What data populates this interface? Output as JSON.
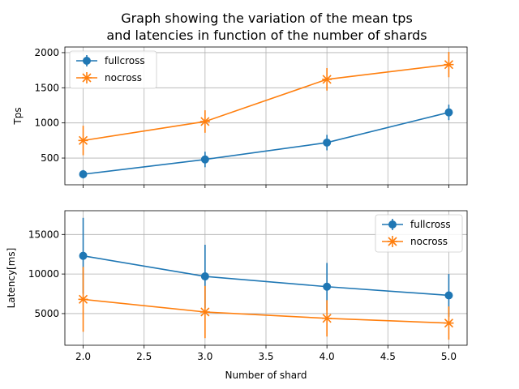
{
  "chart_data": {
    "title_lines": [
      "Graph showing the variation of the mean tps",
      "and latencies in function of the number of shards"
    ],
    "xlabel": "Number of shard",
    "x": [
      2,
      3,
      4,
      5
    ],
    "xlim": [
      1.85,
      5.15
    ],
    "xticks": [
      2.0,
      2.5,
      3.0,
      3.5,
      4.0,
      4.5,
      5.0
    ],
    "xtick_labels": [
      "2.0",
      "2.5",
      "3.0",
      "3.5",
      "4.0",
      "4.5",
      "5.0"
    ],
    "grid": true,
    "colors": {
      "fullcross": "#1f77b4",
      "nocross": "#ff7f0e"
    },
    "panels": [
      {
        "type": "line",
        "ylabel": "Tps",
        "ylim": [
          120,
          2080
        ],
        "yticks": [
          500,
          1000,
          1500,
          2000
        ],
        "ytick_labels": [
          "500",
          "1000",
          "1500",
          "2000"
        ],
        "legend_position": "top-left",
        "show_xtick_labels": false,
        "series": [
          {
            "name": "fullcross",
            "marker": "circle",
            "values": [
              270,
              480,
              720,
              1150
            ],
            "errors": [
              60,
              110,
              110,
              110
            ]
          },
          {
            "name": "nocross",
            "marker": "x",
            "values": [
              750,
              1020,
              1620,
              1830
            ],
            "errors": [
              210,
              160,
              160,
              180
            ]
          }
        ]
      },
      {
        "type": "line",
        "ylabel": "Latency[ms]",
        "ylim": [
          1000,
          18000
        ],
        "yticks": [
          5000,
          10000,
          15000
        ],
        "ytick_labels": [
          "5000",
          "10000",
          "15000"
        ],
        "legend_position": "top-right",
        "show_xtick_labels": true,
        "series": [
          {
            "name": "fullcross",
            "marker": "circle",
            "values": [
              12300,
              9700,
              8400,
              7300
            ],
            "errors": [
              4800,
              4000,
              3000,
              2700
            ]
          },
          {
            "name": "nocross",
            "marker": "x",
            "values": [
              6800,
              5200,
              4400,
              3800
            ],
            "errors": [
              4100,
              3300,
              2300,
              2100
            ]
          }
        ]
      }
    ]
  }
}
